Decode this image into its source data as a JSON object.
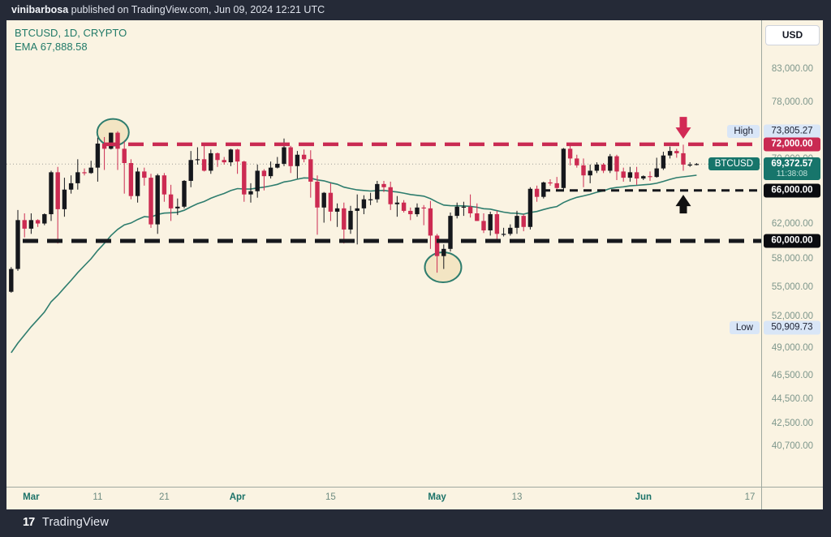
{
  "publish_bar": {
    "author": "vinibarbosa",
    "text": " published on TradingView.com, Jun 09, 2024 12:21 UTC"
  },
  "legend": {
    "symbol_line": "BTCUSD, 1D, CRYPTO",
    "ema_label": "EMA",
    "ema_value": "67,888.58"
  },
  "price_axis": {
    "currency_label": "USD",
    "ticks": [
      {
        "label": "83,000.00",
        "price": 83000
      },
      {
        "label": "78,000.00",
        "price": 78000
      },
      {
        "label": "70,000.00",
        "price": 70000
      },
      {
        "label": "62,000.00",
        "price": 62000
      },
      {
        "label": "58,000.00",
        "price": 58000
      },
      {
        "label": "55,000.00",
        "price": 55000
      },
      {
        "label": "52,000.00",
        "price": 52000
      },
      {
        "label": "49,000.00",
        "price": 49000
      },
      {
        "label": "46,500.00",
        "price": 46500
      },
      {
        "label": "44,500.00",
        "price": 44500
      },
      {
        "label": "42,500.00",
        "price": 42500
      },
      {
        "label": "40,700.00",
        "price": 40700
      }
    ],
    "badges": [
      {
        "kind": "blue",
        "label": "73,805.27",
        "price": 73805.27,
        "tag": "High"
      },
      {
        "kind": "red",
        "label": "72,000.00",
        "price": 72000,
        "tag": null
      },
      {
        "kind": "teal",
        "label": "69,372.57",
        "price": 69372.57,
        "tag": "BTCUSD",
        "countdown": "11:38:08"
      },
      {
        "kind": "black",
        "label": "66,000.00",
        "price": 66000,
        "tag": null
      },
      {
        "kind": "black",
        "label": "60,000.00",
        "price": 60000,
        "tag": null
      },
      {
        "kind": "blue",
        "label": "50,909.73",
        "price": 50909.73,
        "tag": "Low"
      }
    ]
  },
  "time_axis": {
    "ticks": [
      {
        "label": "Mar",
        "candle_index": 3,
        "major": true
      },
      {
        "label": "11",
        "candle_index": 13,
        "major": false
      },
      {
        "label": "21",
        "candle_index": 23,
        "major": false
      },
      {
        "label": "Apr",
        "candle_index": 34,
        "major": true
      },
      {
        "label": "15",
        "candle_index": 48,
        "major": false
      },
      {
        "label": "May",
        "candle_index": 64,
        "major": true
      },
      {
        "label": "13",
        "candle_index": 76,
        "major": false
      },
      {
        "label": "Jun",
        "candle_index": 95,
        "major": true
      },
      {
        "label": "17",
        "candle_index": 111,
        "major": false
      }
    ]
  },
  "footer": {
    "logo_glyph": "17",
    "brand": "TradingView"
  },
  "colors": {
    "background": "#faf3e2",
    "frame": "#252a37",
    "bull": "#15171c",
    "bear": "#cc2b52",
    "ema": "#2e7d6e",
    "level_red": "#c92a52",
    "level_black": "#16181d",
    "accent_teal": "#17756b",
    "label_blue": "#d9e6f7",
    "price_line": "#a0a09a",
    "circle_fill": "#f3e5c3"
  },
  "chart_data": {
    "type": "candlestick",
    "symbol": "BTCUSD",
    "interval": "1D",
    "exchange": "CRYPTO",
    "title": "BTCUSD, 1D, CRYPTO",
    "scale": "logarithmic",
    "ylim": [
      40000,
      85500
    ],
    "current_price": 69372.57,
    "countdown": "11:38:08",
    "session_high": 73805.27,
    "session_low": 50909.73,
    "ema": {
      "label": "EMA",
      "value": 67888.58,
      "period": 30,
      "seed": 48000
    },
    "levels": [
      {
        "price": 72000,
        "style": "red-dashed-thick"
      },
      {
        "price": 66000,
        "style": "black-dashed-thin"
      },
      {
        "price": 60000,
        "style": "black-dashed-thick"
      }
    ],
    "annotations": [
      {
        "type": "circle",
        "label": "march-top",
        "candle_index": 15.3,
        "price": 73650,
        "rx": 19.5,
        "ry": 16.5
      },
      {
        "type": "circle",
        "label": "may-bottom",
        "candle_index": 64.9,
        "price": 57080,
        "rx": 22.5,
        "ry": 18.5
      },
      {
        "type": "arrow-down",
        "label": "resistance-rejection",
        "candle_index": 101,
        "tip_price": 72760
      },
      {
        "type": "arrow-up",
        "label": "support-retest",
        "candle_index": 101,
        "tip_price": 65460
      }
    ],
    "candles": [
      [
        "Feb 27",
        54500,
        57100,
        54400,
        56900
      ],
      [
        "Feb 28",
        56900,
        63600,
        56700,
        62400
      ],
      [
        "Feb 29",
        62400,
        63200,
        60400,
        61400
      ],
      [
        "Mar 1",
        61400,
        63200,
        60800,
        62400
      ],
      [
        "Mar 2",
        62400,
        62500,
        61600,
        62000
      ],
      [
        "Mar 3",
        62000,
        63200,
        61800,
        63100
      ],
      [
        "Mar 4",
        63100,
        68500,
        62300,
        68300
      ],
      [
        "Mar 5",
        68300,
        69000,
        59700,
        63700
      ],
      [
        "Mar 6",
        63700,
        67600,
        62800,
        66100
      ],
      [
        "Mar 7",
        66100,
        67900,
        65600,
        66900
      ],
      [
        "Mar 8",
        66900,
        70000,
        66100,
        68300
      ],
      [
        "Mar 9",
        68300,
        68800,
        67900,
        68200
      ],
      [
        "Mar 10",
        68200,
        69800,
        68100,
        68900
      ],
      [
        "Mar 11",
        68900,
        72900,
        67100,
        72100
      ],
      [
        "Mar 12",
        72100,
        73000,
        68600,
        71400
      ],
      [
        "Mar 13",
        71400,
        73600,
        71300,
        73600
      ],
      [
        "Mar 14",
        73600,
        73805,
        68600,
        71400
      ],
      [
        "Mar 15",
        71400,
        72400,
        65600,
        69500
      ],
      [
        "Mar 16",
        69500,
        70000,
        64900,
        65300
      ],
      [
        "Mar 17",
        65300,
        68900,
        64500,
        68400
      ],
      [
        "Mar 18",
        68400,
        68900,
        66600,
        67600
      ],
      [
        "Mar 19",
        67600,
        68100,
        61500,
        61900
      ],
      [
        "Mar 20",
        61900,
        68100,
        60800,
        67900
      ],
      [
        "Mar 21",
        67900,
        68200,
        64600,
        65500
      ],
      [
        "Mar 22",
        65500,
        66700,
        62300,
        63800
      ],
      [
        "Mar 23",
        63800,
        65000,
        63000,
        64000
      ],
      [
        "Mar 24",
        64000,
        67300,
        63800,
        67200
      ],
      [
        "Mar 25",
        67200,
        71100,
        66400,
        69900
      ],
      [
        "Mar 26",
        69900,
        71600,
        69300,
        70000
      ],
      [
        "Mar 27",
        70000,
        71800,
        68400,
        68500
      ],
      [
        "Mar 28",
        68500,
        71300,
        68100,
        70800
      ],
      [
        "Mar 29",
        70800,
        70900,
        69000,
        69900
      ],
      [
        "Mar 30",
        69900,
        70300,
        69300,
        69600
      ],
      [
        "Mar 31",
        69600,
        71400,
        69100,
        71300
      ],
      [
        "Apr 1",
        71300,
        71400,
        68100,
        69700
      ],
      [
        "Apr 2",
        69700,
        69800,
        64600,
        65500
      ],
      [
        "Apr 3",
        65500,
        66900,
        64500,
        65900
      ],
      [
        "Apr 4",
        65900,
        69300,
        65100,
        68500
      ],
      [
        "Apr 5",
        68500,
        68700,
        66000,
        67800
      ],
      [
        "Apr 6",
        67800,
        69700,
        67500,
        68900
      ],
      [
        "Apr 7",
        68900,
        70300,
        68800,
        69400
      ],
      [
        "Apr 8",
        69400,
        72800,
        69100,
        71600
      ],
      [
        "Apr 9",
        71600,
        71800,
        68200,
        69100
      ],
      [
        "Apr 10",
        69100,
        71100,
        67500,
        70600
      ],
      [
        "Apr 11",
        70600,
        71300,
        69600,
        70000
      ],
      [
        "Apr 12",
        70000,
        71200,
        65100,
        67100
      ],
      [
        "Apr 13",
        67100,
        67900,
        60700,
        63900
      ],
      [
        "Apr 14",
        63900,
        65800,
        62100,
        65700
      ],
      [
        "Apr 15",
        65700,
        66900,
        62300,
        63400
      ],
      [
        "Apr 16",
        63400,
        64400,
        61600,
        63800
      ],
      [
        "Apr 17",
        63800,
        64500,
        59700,
        61300
      ],
      [
        "Apr 18",
        61300,
        64100,
        60800,
        63500
      ],
      [
        "Apr 19",
        63500,
        65500,
        59600,
        63800
      ],
      [
        "Apr 20",
        63800,
        65400,
        63100,
        64900
      ],
      [
        "Apr 21",
        64900,
        65700,
        64200,
        64900
      ],
      [
        "Apr 22",
        64900,
        67200,
        64500,
        66800
      ],
      [
        "Apr 23",
        66800,
        67200,
        65800,
        66400
      ],
      [
        "Apr 24",
        66400,
        67100,
        63600,
        64300
      ],
      [
        "Apr 25",
        64300,
        65300,
        62800,
        64500
      ],
      [
        "Apr 26",
        64500,
        64800,
        63300,
        63500
      ],
      [
        "Apr 27",
        63500,
        63900,
        62400,
        63100
      ],
      [
        "Apr 28",
        63100,
        64400,
        62800,
        63900
      ],
      [
        "Apr 29",
        63900,
        64200,
        61800,
        63800
      ],
      [
        "Apr 30",
        63800,
        64700,
        59100,
        60600
      ],
      [
        "May 1",
        60600,
        60800,
        56500,
        58300
      ],
      [
        "May 2",
        58300,
        59600,
        56900,
        59100
      ],
      [
        "May 3",
        59100,
        63300,
        58800,
        62900
      ],
      [
        "May 4",
        62900,
        64500,
        62600,
        64000
      ],
      [
        "May 5",
        64000,
        64600,
        62900,
        64000
      ],
      [
        "May 6",
        64000,
        65500,
        62700,
        63200
      ],
      [
        "May 7",
        63200,
        64400,
        62300,
        62300
      ],
      [
        "May 8",
        62300,
        63200,
        60900,
        61200
      ],
      [
        "May 9",
        61200,
        63400,
        60600,
        63100
      ],
      [
        "May 10",
        63100,
        63500,
        60200,
        60800
      ],
      [
        "May 11",
        60800,
        61500,
        60500,
        60800
      ],
      [
        "May 12",
        60800,
        61900,
        60600,
        61500
      ],
      [
        "May 13",
        61500,
        63500,
        60800,
        62900
      ],
      [
        "May 14",
        62900,
        63100,
        61100,
        61600
      ],
      [
        "May 15",
        61600,
        66400,
        61300,
        66200
      ],
      [
        "May 16",
        66200,
        66600,
        64600,
        65200
      ],
      [
        "May 17",
        65200,
        67100,
        65000,
        67000
      ],
      [
        "May 18",
        67000,
        67400,
        66600,
        66900
      ],
      [
        "May 19",
        66900,
        67700,
        65900,
        66300
      ],
      [
        "May 20",
        66300,
        71500,
        66100,
        71400
      ],
      [
        "May 21",
        71400,
        71900,
        69200,
        70100
      ],
      [
        "May 22",
        70100,
        70600,
        68900,
        69200
      ],
      [
        "May 23",
        69200,
        70100,
        66400,
        67900
      ],
      [
        "May 24",
        67900,
        69300,
        66900,
        68500
      ],
      [
        "May 25",
        68500,
        69600,
        68200,
        69300
      ],
      [
        "May 26",
        69300,
        69500,
        68200,
        68500
      ],
      [
        "May 27",
        68500,
        70700,
        68200,
        70400
      ],
      [
        "May 28",
        70400,
        70600,
        67300,
        68400
      ],
      [
        "May 29",
        68400,
        68900,
        67100,
        67600
      ],
      [
        "May 30",
        67600,
        69000,
        67100,
        68300
      ],
      [
        "May 31",
        68300,
        69000,
        66700,
        67500
      ],
      [
        "Jun 1",
        67500,
        67900,
        67300,
        67800
      ],
      [
        "Jun 2",
        67800,
        68400,
        67200,
        67700
      ],
      [
        "Jun 3",
        67700,
        70200,
        67600,
        68800
      ],
      [
        "Jun 4",
        68800,
        71000,
        68600,
        70500
      ],
      [
        "Jun 5",
        70500,
        71700,
        70100,
        71100
      ],
      [
        "Jun 6",
        71100,
        71400,
        70200,
        70800
      ],
      [
        "Jun 7",
        70800,
        71950,
        68500,
        69300
      ],
      [
        "Jun 8",
        69300,
        69600,
        69000,
        69300
      ],
      [
        "Jun 9",
        69300,
        69500,
        69200,
        69370
      ]
    ]
  }
}
